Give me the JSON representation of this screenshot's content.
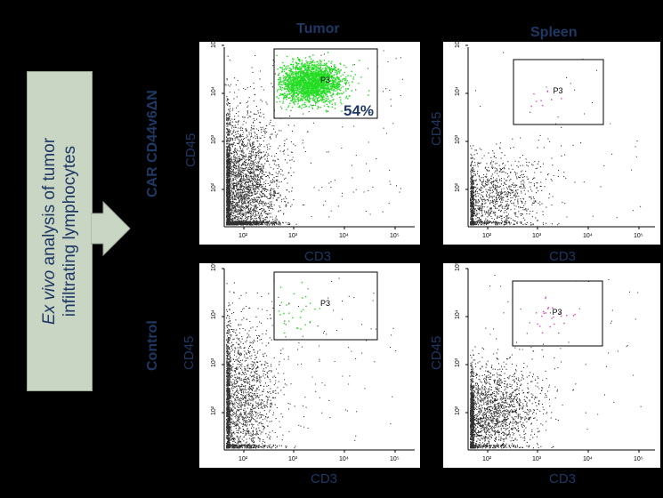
{
  "columns": [
    "Tumor",
    "Spleen"
  ],
  "rows": [
    "CAR CD44v6ΔN",
    "Control"
  ],
  "side_text": {
    "italic": "Ex vivo",
    "line1_rest": " analysis of tumor",
    "line2": "infiltrating lymphocytes"
  },
  "axis": {
    "x": "CD3",
    "y": "CD45"
  },
  "gate_label": "P3",
  "percent": "54%",
  "ticks": {
    "x": [
      "10²",
      "10³",
      "10⁴",
      "10⁵"
    ],
    "y": [
      "10²",
      "10³",
      "10⁴",
      "10⁵"
    ]
  },
  "colors": {
    "background": "#000000",
    "label": "#1f3864",
    "bg_dots": "#303030",
    "gate_green": "#22dd22",
    "gate_pink": "#e040c0",
    "arrow_fill": "#c9d6c3"
  },
  "panels": [
    {
      "id": "tumor-car",
      "gate_color": "green",
      "bg_density": "dense",
      "gate_density": "dense",
      "show_percent": true
    },
    {
      "id": "spleen-car",
      "gate_color": "pink",
      "bg_density": "sparse",
      "gate_density": "few"
    },
    {
      "id": "tumor-control",
      "gate_color": "green",
      "bg_density": "dense",
      "gate_density": "sparse"
    },
    {
      "id": "spleen-control",
      "gate_color": "pink",
      "bg_density": "medium",
      "gate_density": "few"
    }
  ]
}
